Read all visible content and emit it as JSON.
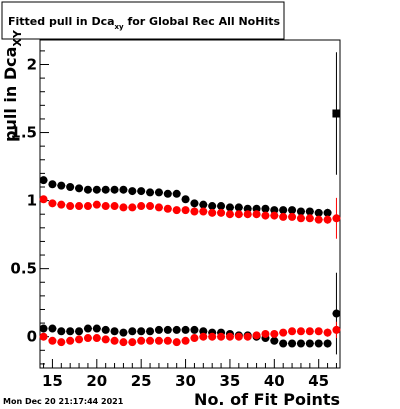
{
  "chart_data": {
    "type": "scatter",
    "title_main": "Fitted pull in Dca",
    "title_sub": "xy",
    "title_rest": " for Global Rec All NoHits",
    "xlabel": "No. of Fit Points",
    "ylabel_main": "pull in Dca",
    "ylabel_sub": "XY",
    "xlim": [
      13.6,
      47.4
    ],
    "ylim": [
      -0.23,
      2.18
    ],
    "xticks": [
      15,
      20,
      25,
      30,
      35,
      40,
      45
    ],
    "yticks": [
      0,
      0.5,
      1,
      1.5,
      2
    ],
    "ytick_labels": [
      "0",
      "0.5",
      "1",
      "1.5",
      "2"
    ],
    "timestamp": "Mon Dec 20 21:17:44 2021",
    "colors": {
      "black_series": "#000000",
      "red_series": "#ff0000"
    },
    "series": [
      {
        "color": "#000000",
        "x": [
          14,
          15,
          16,
          17,
          18,
          19,
          20,
          21,
          22,
          23,
          24,
          25,
          26,
          27,
          28,
          29,
          30,
          31,
          32,
          33,
          34,
          35,
          36,
          37,
          38,
          39,
          40,
          41,
          42,
          43,
          44,
          45,
          46,
          47
        ],
        "y": [
          1.15,
          1.12,
          1.11,
          1.1,
          1.09,
          1.08,
          1.08,
          1.08,
          1.08,
          1.08,
          1.07,
          1.07,
          1.06,
          1.06,
          1.05,
          1.05,
          1.01,
          0.98,
          0.97,
          0.96,
          0.96,
          0.95,
          0.95,
          0.94,
          0.94,
          0.94,
          0.93,
          0.93,
          0.93,
          0.92,
          0.92,
          0.91,
          0.91,
          1.64
        ],
        "err": [
          0.02,
          0.02,
          0.02,
          0.02,
          0.02,
          0.02,
          0.02,
          0.02,
          0.02,
          0.02,
          0.02,
          0.02,
          0.02,
          0.02,
          0.02,
          0.02,
          0.02,
          0.02,
          0.02,
          0.02,
          0.02,
          0.02,
          0.02,
          0.02,
          0.02,
          0.02,
          0.02,
          0.02,
          0.02,
          0.02,
          0.02,
          0.02,
          0.03,
          0.45
        ]
      },
      {
        "color": "#ff0000",
        "x": [
          14,
          15,
          16,
          17,
          18,
          19,
          20,
          21,
          22,
          23,
          24,
          25,
          26,
          27,
          28,
          29,
          30,
          31,
          32,
          33,
          34,
          35,
          36,
          37,
          38,
          39,
          40,
          41,
          42,
          43,
          44,
          45,
          46,
          47
        ],
        "y": [
          1.01,
          0.98,
          0.97,
          0.96,
          0.96,
          0.96,
          0.97,
          0.96,
          0.96,
          0.95,
          0.95,
          0.96,
          0.96,
          0.95,
          0.94,
          0.93,
          0.93,
          0.92,
          0.92,
          0.91,
          0.91,
          0.9,
          0.9,
          0.9,
          0.9,
          0.89,
          0.89,
          0.88,
          0.88,
          0.87,
          0.87,
          0.86,
          0.86,
          0.87
        ],
        "err": [
          0.02,
          0.02,
          0.02,
          0.02,
          0.02,
          0.02,
          0.02,
          0.02,
          0.02,
          0.02,
          0.02,
          0.02,
          0.02,
          0.02,
          0.02,
          0.02,
          0.02,
          0.02,
          0.02,
          0.02,
          0.02,
          0.02,
          0.02,
          0.02,
          0.02,
          0.02,
          0.02,
          0.02,
          0.02,
          0.02,
          0.02,
          0.02,
          0.03,
          0.15
        ]
      },
      {
        "color": "#000000",
        "x": [
          14,
          15,
          16,
          17,
          18,
          19,
          20,
          21,
          22,
          23,
          24,
          25,
          26,
          27,
          28,
          29,
          30,
          31,
          32,
          33,
          34,
          35,
          36,
          37,
          38,
          39,
          40,
          41,
          42,
          43,
          44,
          45,
          46,
          47
        ],
        "y": [
          0.06,
          0.06,
          0.04,
          0.04,
          0.04,
          0.06,
          0.06,
          0.05,
          0.04,
          0.03,
          0.04,
          0.04,
          0.04,
          0.05,
          0.05,
          0.05,
          0.05,
          0.05,
          0.04,
          0.03,
          0.03,
          0.02,
          0.01,
          0.01,
          0.0,
          -0.01,
          -0.03,
          -0.05,
          -0.05,
          -0.05,
          -0.05,
          -0.05,
          -0.05,
          0.17
        ],
        "err": [
          0.02,
          0.02,
          0.02,
          0.02,
          0.02,
          0.02,
          0.02,
          0.02,
          0.02,
          0.02,
          0.02,
          0.02,
          0.02,
          0.02,
          0.02,
          0.02,
          0.02,
          0.02,
          0.02,
          0.02,
          0.02,
          0.02,
          0.02,
          0.02,
          0.02,
          0.02,
          0.02,
          0.02,
          0.02,
          0.02,
          0.02,
          0.02,
          0.03,
          0.3
        ]
      },
      {
        "color": "#ff0000",
        "x": [
          14,
          15,
          16,
          17,
          18,
          19,
          20,
          21,
          22,
          23,
          24,
          25,
          26,
          27,
          28,
          29,
          30,
          31,
          32,
          33,
          34,
          35,
          36,
          37,
          38,
          39,
          40,
          41,
          42,
          43,
          44,
          45,
          46,
          47
        ],
        "y": [
          0.0,
          -0.03,
          -0.04,
          -0.03,
          -0.02,
          -0.01,
          -0.01,
          -0.02,
          -0.03,
          -0.04,
          -0.04,
          -0.03,
          -0.03,
          -0.03,
          -0.03,
          -0.04,
          -0.03,
          -0.01,
          0.0,
          0.0,
          0.0,
          0.0,
          0.0,
          0.0,
          0.01,
          0.02,
          0.02,
          0.03,
          0.04,
          0.04,
          0.04,
          0.04,
          0.03,
          0.05
        ],
        "err": [
          0.02,
          0.02,
          0.02,
          0.02,
          0.02,
          0.02,
          0.02,
          0.02,
          0.02,
          0.02,
          0.02,
          0.02,
          0.02,
          0.02,
          0.02,
          0.02,
          0.02,
          0.02,
          0.02,
          0.02,
          0.02,
          0.02,
          0.02,
          0.02,
          0.02,
          0.02,
          0.02,
          0.02,
          0.02,
          0.02,
          0.02,
          0.02,
          0.03,
          0.06
        ]
      }
    ]
  }
}
